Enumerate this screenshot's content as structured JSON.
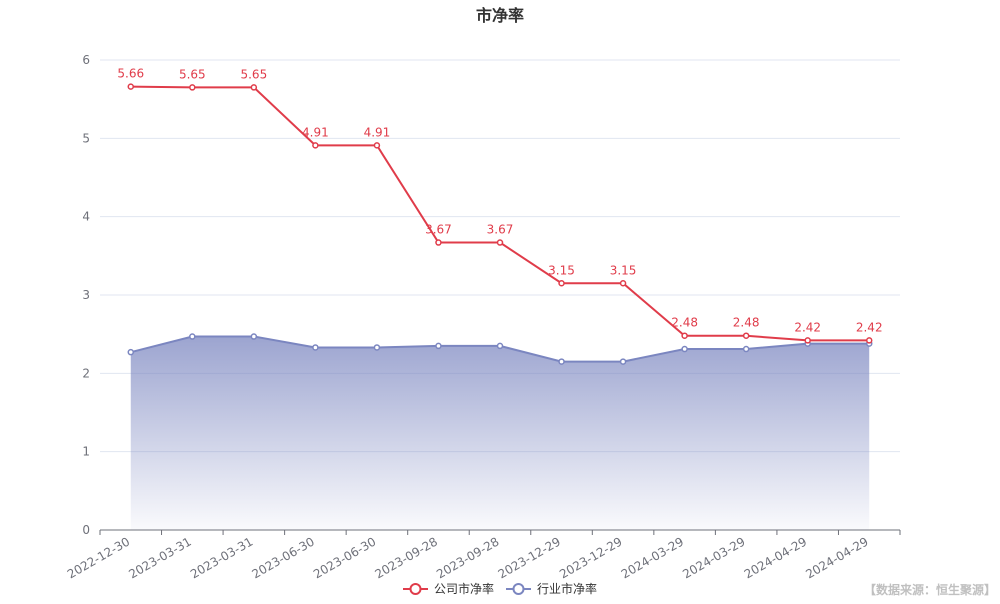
{
  "chart_data": {
    "type": "line",
    "title": "市净率",
    "categories": [
      "2022-12-30",
      "2023-03-31",
      "2023-03-31",
      "2023-06-30",
      "2023-06-30",
      "2023-09-28",
      "2023-09-28",
      "2023-12-29",
      "2023-12-29",
      "2024-03-29",
      "2024-03-29",
      "2024-04-29",
      "2024-04-29"
    ],
    "series": [
      {
        "name": "公司市净率",
        "color": "#e03c4a",
        "values": [
          5.66,
          5.65,
          5.65,
          4.91,
          4.91,
          3.67,
          3.67,
          3.15,
          3.15,
          2.48,
          2.48,
          2.42,
          2.42
        ],
        "data_labels": [
          "5.66",
          "5.65",
          "5.65",
          "4.91",
          "4.91",
          "3.67",
          "3.67",
          "3.15",
          "3.15",
          "2.48",
          "2.48",
          "2.42",
          "2.42"
        ]
      },
      {
        "name": "行业市净率",
        "color": "#7b86c0",
        "area": true,
        "values": [
          2.27,
          2.47,
          2.47,
          2.33,
          2.33,
          2.35,
          2.35,
          2.15,
          2.15,
          2.31,
          2.31,
          2.38,
          2.38
        ]
      }
    ],
    "y_ticks": [
      "0",
      "1",
      "2",
      "3",
      "4",
      "5",
      "6"
    ],
    "ylim": [
      0,
      6
    ],
    "grid": true,
    "legend_position": "bottom-center"
  },
  "source_note": "【数据来源：恒生聚源】"
}
